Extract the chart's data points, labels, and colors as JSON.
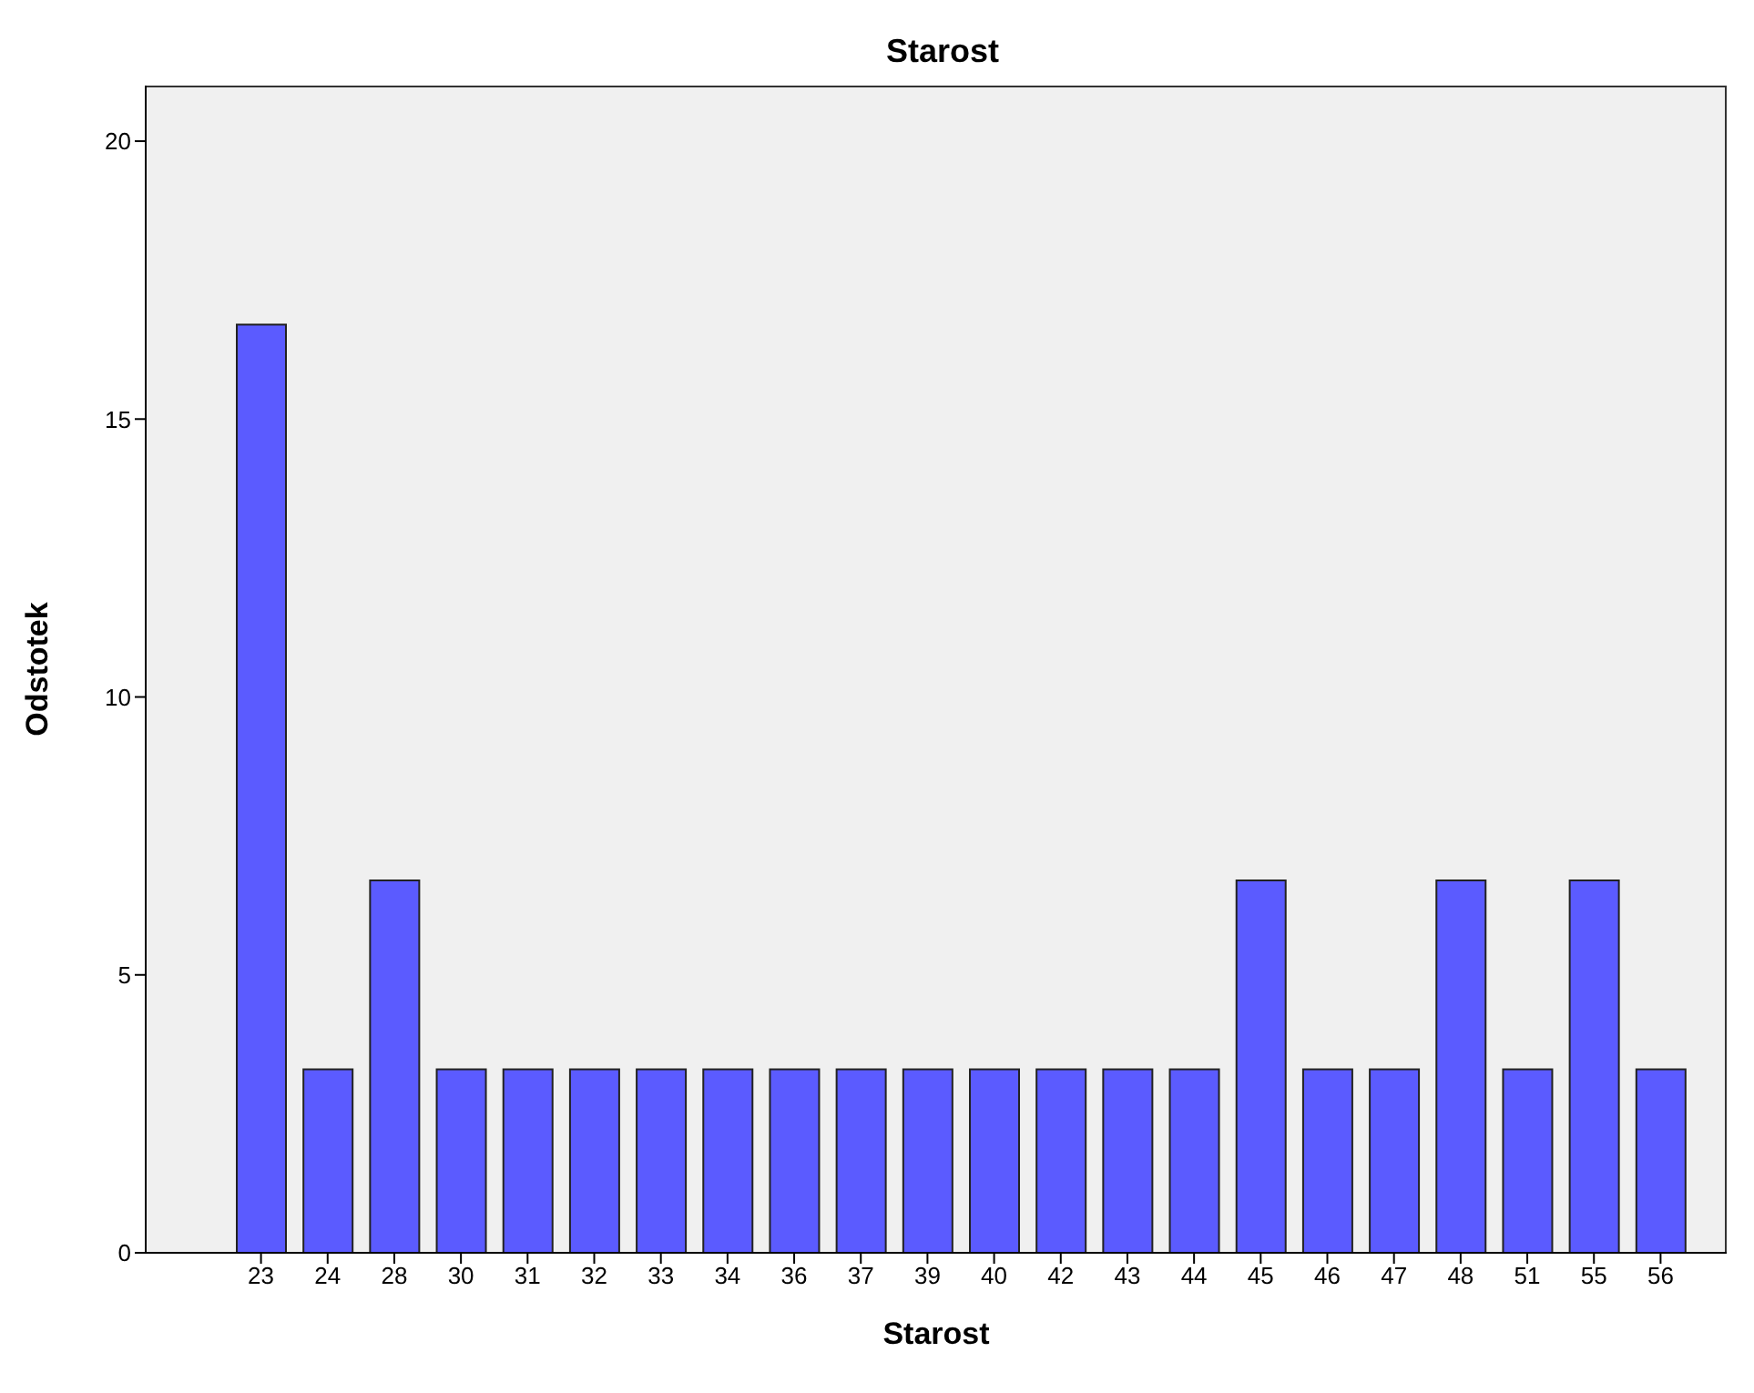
{
  "chart_data": {
    "type": "bar",
    "title": "Starost",
    "xlabel": "Starost",
    "ylabel": "Odstotek",
    "categories": [
      "23",
      "24",
      "28",
      "30",
      "31",
      "32",
      "33",
      "34",
      "36",
      "37",
      "39",
      "40",
      "42",
      "43",
      "44",
      "45",
      "46",
      "47",
      "48",
      "51",
      "55",
      "56"
    ],
    "values": [
      16.7,
      3.3,
      6.7,
      3.3,
      3.3,
      3.3,
      3.3,
      3.3,
      3.3,
      3.3,
      3.3,
      3.3,
      3.3,
      3.3,
      3.3,
      6.7,
      3.3,
      3.3,
      6.7,
      3.3,
      6.7,
      3.3
    ],
    "color": "#5b5bff",
    "ylim": [
      0,
      21
    ],
    "yticks": [
      0,
      5,
      10,
      15,
      20
    ],
    "grid": false,
    "legend": false
  }
}
